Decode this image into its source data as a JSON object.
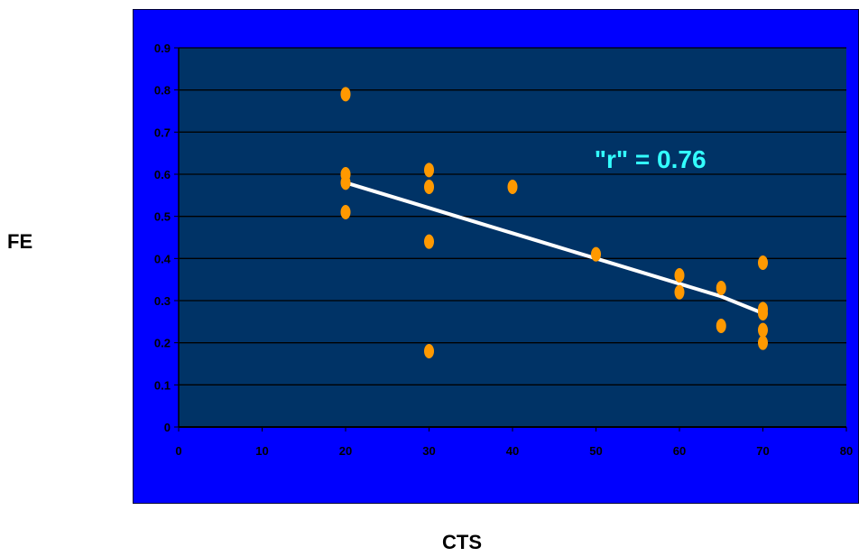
{
  "chart_data": {
    "type": "scatter",
    "title": "",
    "xlabel": "CTS",
    "ylabel": "FE",
    "xlim": [
      0,
      80
    ],
    "ylim": [
      0,
      0.9
    ],
    "xticks": [
      0,
      10,
      20,
      30,
      40,
      50,
      60,
      70,
      80
    ],
    "yticks": [
      0,
      0.1,
      0.2,
      0.3,
      0.4,
      0.5,
      0.6,
      0.7,
      0.8,
      0.9
    ],
    "grid": "horizontal",
    "legend": "none",
    "annotation": "\"r\" = 0.76",
    "points": [
      {
        "x": 20,
        "y": 0.79
      },
      {
        "x": 20,
        "y": 0.6
      },
      {
        "x": 20,
        "y": 0.58
      },
      {
        "x": 20,
        "y": 0.51
      },
      {
        "x": 30,
        "y": 0.61
      },
      {
        "x": 30,
        "y": 0.57
      },
      {
        "x": 30,
        "y": 0.44
      },
      {
        "x": 30,
        "y": 0.18
      },
      {
        "x": 40,
        "y": 0.57
      },
      {
        "x": 50,
        "y": 0.41
      },
      {
        "x": 60,
        "y": 0.36
      },
      {
        "x": 60,
        "y": 0.32
      },
      {
        "x": 65,
        "y": 0.33
      },
      {
        "x": 65,
        "y": 0.24
      },
      {
        "x": 70,
        "y": 0.39
      },
      {
        "x": 70,
        "y": 0.28
      },
      {
        "x": 70,
        "y": 0.27
      },
      {
        "x": 70,
        "y": 0.23
      },
      {
        "x": 70,
        "y": 0.2
      }
    ],
    "trendline": [
      {
        "x": 20,
        "y": 0.58
      },
      {
        "x": 25,
        "y": 0.55
      },
      {
        "x": 30,
        "y": 0.52
      },
      {
        "x": 35,
        "y": 0.49
      },
      {
        "x": 40,
        "y": 0.46
      },
      {
        "x": 45,
        "y": 0.43
      },
      {
        "x": 50,
        "y": 0.4
      },
      {
        "x": 55,
        "y": 0.37
      },
      {
        "x": 60,
        "y": 0.34
      },
      {
        "x": 65,
        "y": 0.31
      },
      {
        "x": 70,
        "y": 0.27
      }
    ],
    "colors": {
      "frame": "#0000ff",
      "plot_area": "#003366",
      "gridline": "#000000",
      "marker": "#ff9900",
      "trendline": "#ffffff",
      "annotation": "#33ffff"
    }
  }
}
